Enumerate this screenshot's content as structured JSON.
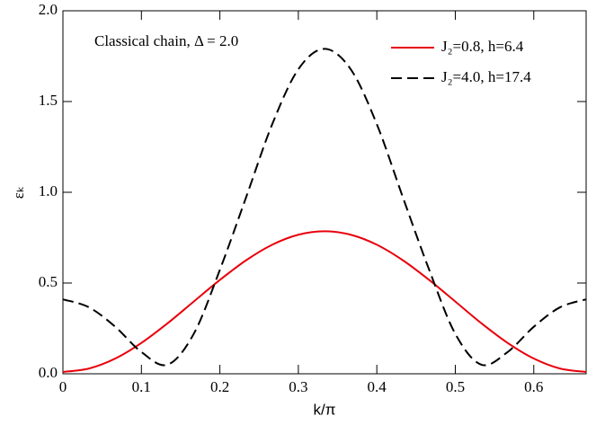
{
  "chart_data": {
    "type": "line",
    "annotation": "Classical chain, Δ = 2.0",
    "xlabel": "k/π",
    "ylabel": "εₖ",
    "x": [
      0,
      0.0333,
      0.0667,
      0.1,
      0.1333,
      0.1667,
      0.2,
      0.2333,
      0.2667,
      0.3,
      0.3333,
      0.3667,
      0.4,
      0.4333,
      0.4667,
      0.5,
      0.5333,
      0.5667,
      0.6,
      0.6333,
      0.6667
    ],
    "series": [
      {
        "name": "J₂=0.8, h=6.4",
        "color": "#e8000b",
        "dash": false,
        "values": [
          0.01,
          0.029,
          0.084,
          0.17,
          0.278,
          0.398,
          0.517,
          0.625,
          0.711,
          0.766,
          0.785,
          0.766,
          0.711,
          0.625,
          0.517,
          0.398,
          0.278,
          0.17,
          0.084,
          0.029,
          0.01
        ]
      },
      {
        "name": "J₂=4.0, h=17.4",
        "color": "#000000",
        "dash": true,
        "values": [
          0.41,
          0.366,
          0.259,
          0.12,
          0.05,
          0.22,
          0.573,
          0.971,
          1.375,
          1.678,
          1.79,
          1.678,
          1.375,
          0.971,
          0.573,
          0.22,
          0.05,
          0.12,
          0.259,
          0.366,
          0.41
        ]
      }
    ],
    "xlim": [
      0,
      0.6667
    ],
    "ylim": [
      0,
      2
    ],
    "xticks": [
      0,
      0.1,
      0.2,
      0.3,
      0.4,
      0.5,
      0.6
    ],
    "yticks": [
      {
        "value": 0,
        "label": "0.0"
      },
      {
        "value": 0.5,
        "label": "0.5"
      },
      {
        "value": 1,
        "label": "1.0"
      },
      {
        "value": 1.5,
        "label": "1.5"
      },
      {
        "value": 2,
        "label": "2.0"
      }
    ],
    "legend": "upper right"
  }
}
